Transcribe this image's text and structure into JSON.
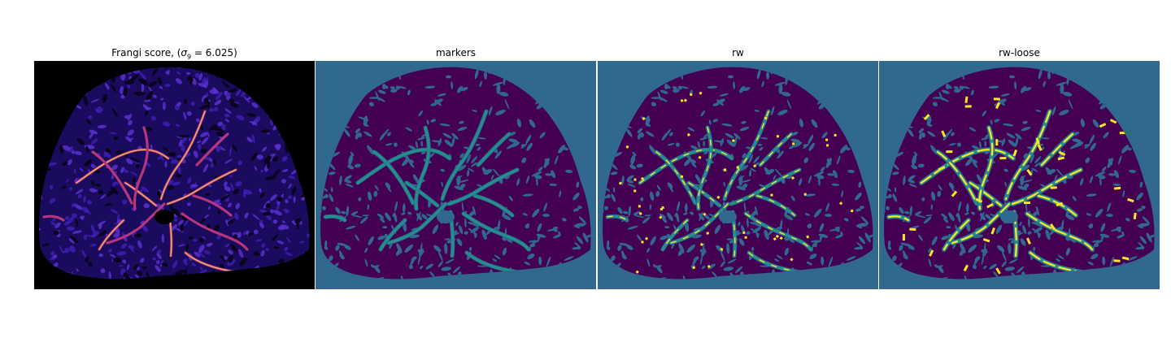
{
  "panels": [
    {
      "key": "frangi",
      "title_pre": "Frangi score, (",
      "title_sym": "σ",
      "title_sub": "9",
      "title_post": " = 6.025)"
    },
    {
      "key": "markers",
      "title": "markers"
    },
    {
      "key": "rw",
      "title": "rw"
    },
    {
      "key": "rw-loose",
      "title": "rw-loose"
    }
  ],
  "colors": {
    "frangi_bg": "#000000",
    "frangi_tissue": "#1a0b5e",
    "frangi_noise": "#3d1fb0",
    "frangi_vessel_lo": "#b5367a",
    "frangi_vessel_hi": "#fcd25a",
    "seg_bg": "#31688e",
    "seg_tissue": "#440154",
    "seg_vessel": "#21918c",
    "seg_highlight": "#fde725"
  }
}
